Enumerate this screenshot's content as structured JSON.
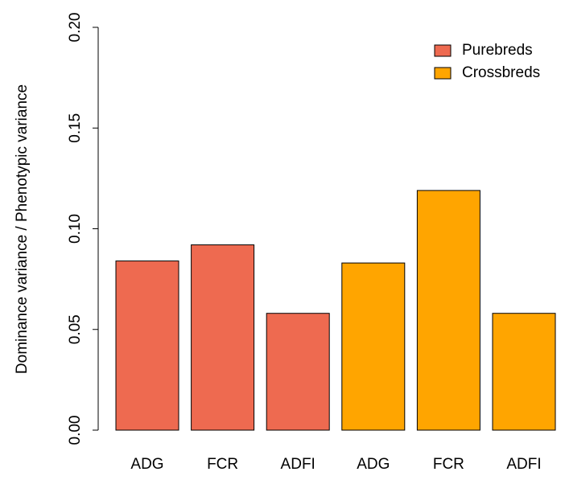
{
  "chart_data": {
    "type": "bar",
    "y_label": "Dominance variance / Phenotypic variance",
    "categories": [
      "ADG",
      "FCR",
      "ADFI",
      "ADG",
      "FCR",
      "ADFI"
    ],
    "series": [
      {
        "name": "Purebreds",
        "color": "#EE6A50",
        "values": [
          0.084,
          0.092,
          0.058,
          null,
          null,
          null
        ]
      },
      {
        "name": "Crossbreds",
        "color": "#FFA500",
        "values": [
          null,
          null,
          null,
          0.083,
          0.119,
          0.058
        ]
      }
    ],
    "ylim": [
      0,
      0.2
    ],
    "yticks": [
      {
        "value": 0,
        "label": "0.00"
      },
      {
        "value": 0.05,
        "label": "0.05"
      },
      {
        "value": 0.1,
        "label": "0.10"
      },
      {
        "value": 0.15,
        "label": "0.15"
      },
      {
        "value": 0.2,
        "label": "0.20"
      }
    ],
    "legend": "top-right"
  }
}
